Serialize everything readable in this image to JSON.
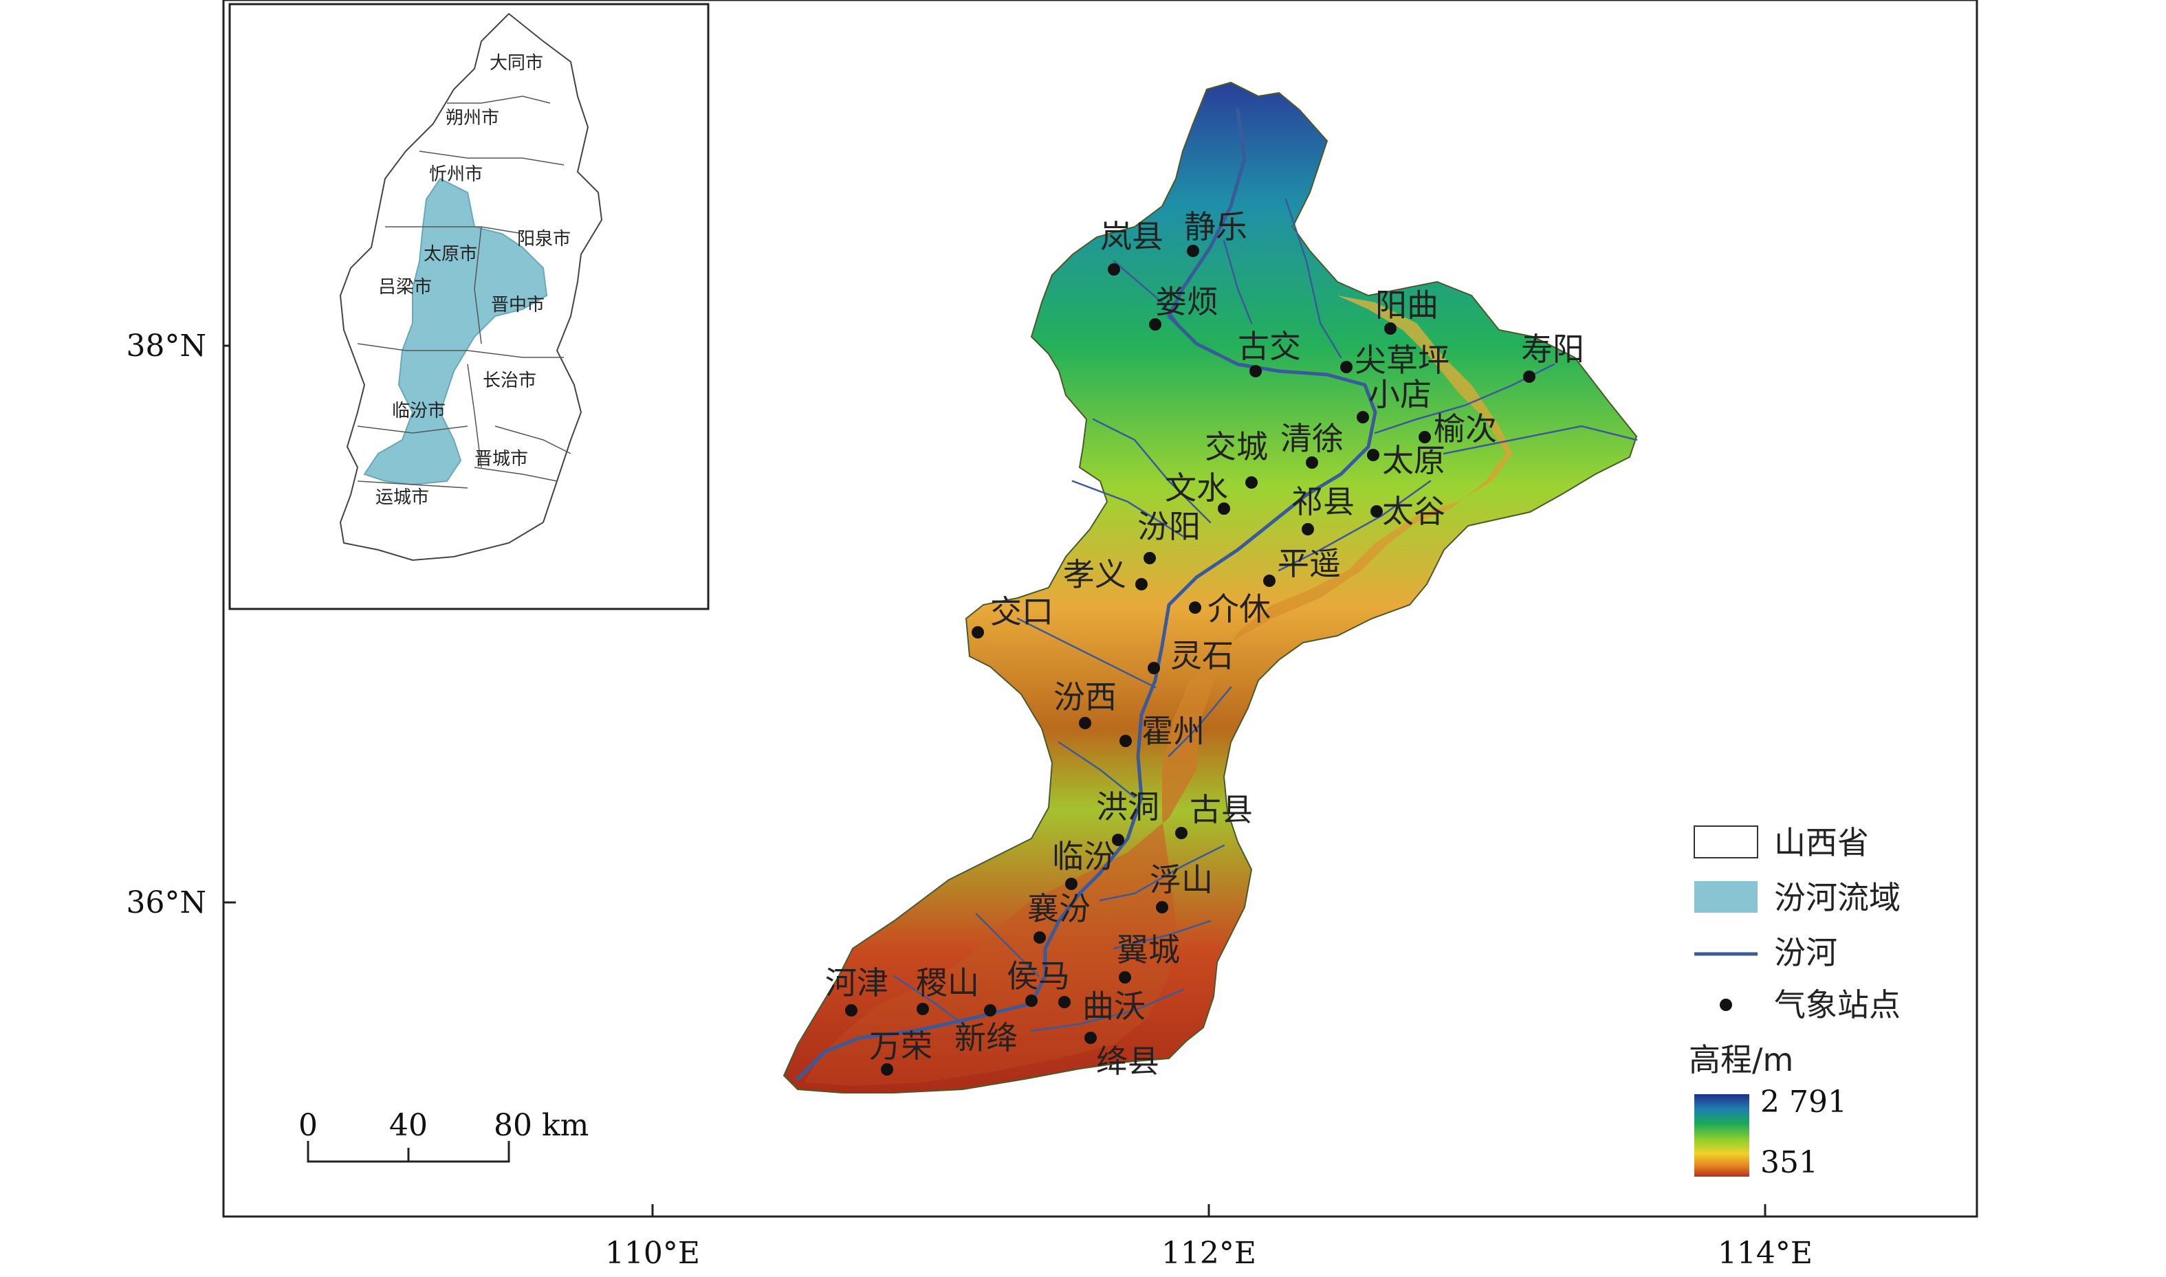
{
  "axes": {
    "x_ticks": [
      "110°E",
      "112°E",
      "114°E"
    ],
    "y_ticks": [
      "38°N",
      "36°N"
    ]
  },
  "inset": {
    "cities": [
      "大同市",
      "朔州市",
      "忻州市",
      "太原市",
      "阳泉市",
      "吕梁市",
      "晋中市",
      "长治市",
      "临汾市",
      "晋城市",
      "运城市"
    ]
  },
  "stations": [
    "岚县",
    "静乐",
    "娄烦",
    "古交",
    "阳曲",
    "寿阳",
    "尖草坪",
    "小店",
    "榆次",
    "交城",
    "清徐",
    "太原",
    "文水",
    "祁县",
    "太谷",
    "汾阳",
    "平遥",
    "孝义",
    "介休",
    "交口",
    "灵石",
    "汾西",
    "霍州",
    "洪洞",
    "古县",
    "临汾",
    "浮山",
    "襄汾",
    "翼城",
    "河津",
    "稷山",
    "侯马",
    "曲沃",
    "万荣",
    "新绛",
    "绛县"
  ],
  "legend": {
    "items": [
      "山西省",
      "汾河流域",
      "汾河",
      "气象站点"
    ],
    "elevation_title": "高程/m",
    "elev_max": "2 791",
    "elev_min": "351",
    "colors": {
      "province_fill": "#ffffff",
      "basin_fill": "#88c4d1",
      "river": "#3a5a9a",
      "station": "#111111"
    }
  },
  "scale_bar": {
    "ticks": [
      "0",
      "40",
      "80 km"
    ]
  }
}
